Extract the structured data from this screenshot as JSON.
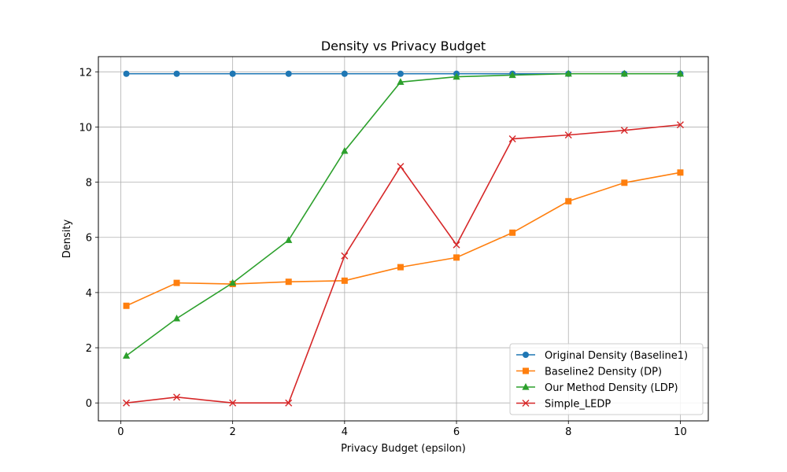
{
  "chart_data": {
    "type": "line",
    "title": "Density vs Privacy Budget",
    "xlabel": "Privacy Budget (epsilon)",
    "ylabel": "Density",
    "xlim": [
      -0.4,
      10.5
    ],
    "ylim": [
      -0.65,
      12.55
    ],
    "xticks": [
      0,
      2,
      4,
      6,
      8,
      10
    ],
    "yticks": [
      0,
      2,
      4,
      6,
      8,
      10,
      12
    ],
    "grid": true,
    "legend_position": "lower-right",
    "x": [
      0.1,
      1,
      2,
      3,
      4,
      5,
      6,
      7,
      8,
      9,
      10
    ],
    "series": [
      {
        "name": "Original Density (Baseline1)",
        "color": "#1f77b4",
        "marker": "circle",
        "values": [
          11.93,
          11.93,
          11.93,
          11.93,
          11.93,
          11.93,
          11.93,
          11.93,
          11.93,
          11.93,
          11.93
        ]
      },
      {
        "name": "Baseline2 Density (DP)",
        "color": "#ff7f0e",
        "marker": "square",
        "values": [
          3.52,
          4.35,
          4.31,
          4.39,
          4.43,
          4.92,
          5.27,
          6.17,
          7.31,
          7.98,
          8.35
        ]
      },
      {
        "name": "Our Method Density (LDP)",
        "color": "#2ca02c",
        "marker": "triangle",
        "values": [
          1.71,
          3.06,
          4.35,
          5.9,
          9.13,
          11.63,
          11.82,
          11.88,
          11.93,
          11.93,
          11.93
        ]
      },
      {
        "name": "Simple_LEDP",
        "color": "#d62728",
        "marker": "x",
        "values": [
          0.0,
          0.21,
          0.0,
          0.0,
          5.33,
          8.57,
          5.73,
          9.57,
          9.71,
          9.88,
          10.08
        ]
      }
    ]
  }
}
